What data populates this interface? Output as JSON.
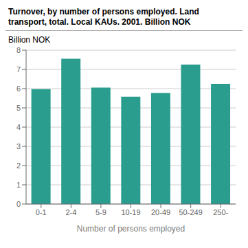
{
  "chart_data": {
    "type": "bar",
    "title": "Turnover, by number of persons employed. Land\ntransport, total. Local KAUs. 2001. Billion NOK",
    "categories": [
      "0-1",
      "2-4",
      "5-9",
      "10-19",
      "20-49",
      "50-249",
      "250-"
    ],
    "values": [
      5.97,
      7.55,
      6.05,
      5.58,
      5.78,
      7.25,
      6.25
    ],
    "color": "#2a9d8f",
    "ylabel": "Billion NOK",
    "xlabel": "Number of persons employed",
    "ylim": [
      0,
      8
    ],
    "yticks": [
      0,
      1,
      2,
      3,
      4,
      5,
      6,
      7,
      8
    ],
    "grid": true
  }
}
